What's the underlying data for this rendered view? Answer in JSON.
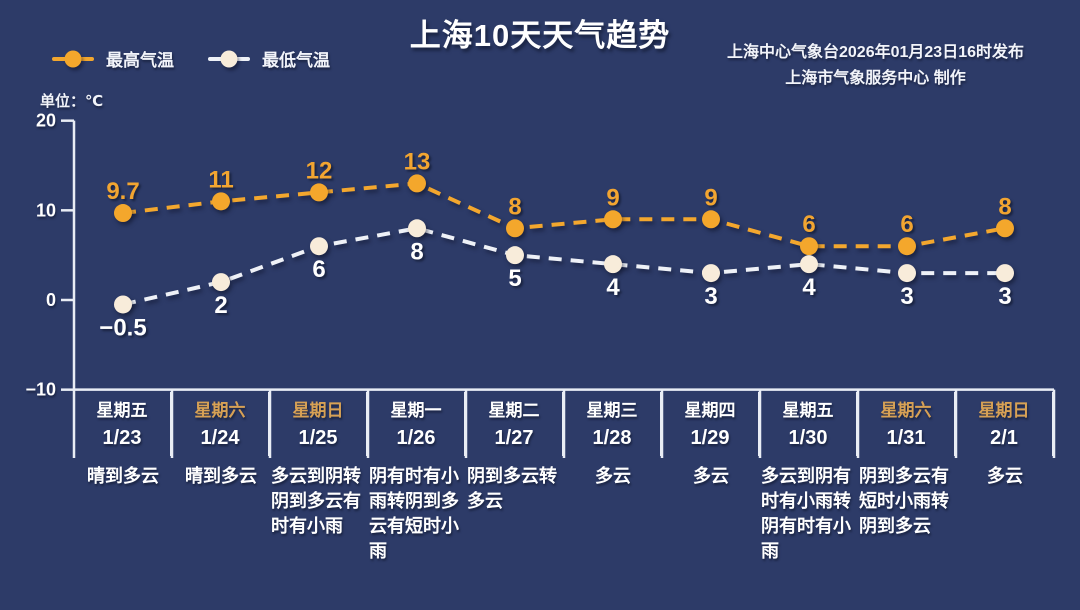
{
  "meta": {
    "title": "上海10天天气趋势",
    "source_line1": "上海中心气象台2026年01月23日16时发布",
    "source_line2": "上海市气象服务中心  制作",
    "unit_label": "单位：℃"
  },
  "colors": {
    "background": "#2d3b68",
    "max_line": "#f3a72e",
    "max_label": "#f2a531",
    "min_line": "#eef1f7",
    "min_marker": "#f8ecda",
    "min_label": "#ffffff",
    "axis": "#e9edf5",
    "weekday_weekend": "#d7a155",
    "weekday_normal": "#ffffff"
  },
  "legend": [
    {
      "name": "legend-item-max",
      "label": "最高气温",
      "line_color": "#f3a72e",
      "marker_color": "#f4a72c"
    },
    {
      "name": "legend-item-min",
      "label": "最低气温",
      "line_color": "#eef1f7",
      "marker_color": "#f8ecda"
    }
  ],
  "chart_data": {
    "type": "line",
    "title": "上海10天天气趋势",
    "x_categories": [
      "1/23",
      "1/24",
      "1/25",
      "1/26",
      "1/27",
      "1/28",
      "1/29",
      "1/30",
      "1/31",
      "2/1"
    ],
    "series": [
      {
        "name": "最高气温",
        "values": [
          9.7,
          11,
          12,
          13,
          8,
          9,
          9,
          6,
          6,
          8
        ],
        "labels": [
          "9.7",
          "11",
          "12",
          "13",
          "8",
          "9",
          "9",
          "6",
          "6",
          "8"
        ],
        "line_color": "#f3a72e",
        "marker_color": "#f4a72c",
        "label_color": "#f2a531",
        "label_side": "above"
      },
      {
        "name": "最低气温",
        "values": [
          -0.5,
          2,
          6,
          8,
          5,
          4,
          3,
          4,
          3,
          3
        ],
        "labels": [
          "−0.5",
          "2",
          "6",
          "8",
          "5",
          "4",
          "3",
          "4",
          "3",
          "3"
        ],
        "line_color": "#eef1f7",
        "marker_color": "#f8ecda",
        "label_color": "#ffffff",
        "label_side": "below"
      }
    ],
    "ylim": [
      -10,
      20
    ],
    "yticks": [
      {
        "value": 20,
        "label": "20"
      },
      {
        "value": 10,
        "label": "10"
      },
      {
        "value": 0,
        "label": "0"
      },
      {
        "value": -10,
        "label": "−10"
      }
    ],
    "grid": false,
    "line_style": "dashed",
    "legend_position": "top-left",
    "ylabel": "单位：℃"
  },
  "days": [
    {
      "weekday": "星期五",
      "date": "1/23",
      "is_weekend": false,
      "weather": "晴到多云"
    },
    {
      "weekday": "星期六",
      "date": "1/24",
      "is_weekend": true,
      "weather": "晴到多云"
    },
    {
      "weekday": "星期日",
      "date": "1/25",
      "is_weekend": true,
      "weather": "多云到阴转阴到多云有时有小雨"
    },
    {
      "weekday": "星期一",
      "date": "1/26",
      "is_weekend": false,
      "weather": "阴有时有小雨转阴到多云有短时小雨"
    },
    {
      "weekday": "星期二",
      "date": "1/27",
      "is_weekend": false,
      "weather": "阴到多云转多云"
    },
    {
      "weekday": "星期三",
      "date": "1/28",
      "is_weekend": false,
      "weather": "多云"
    },
    {
      "weekday": "星期四",
      "date": "1/29",
      "is_weekend": false,
      "weather": "多云"
    },
    {
      "weekday": "星期五",
      "date": "1/30",
      "is_weekend": false,
      "weather": "多云到阴有时有小雨转阴有时有小雨"
    },
    {
      "weekday": "星期六",
      "date": "1/31",
      "is_weekend": true,
      "weather": "阴到多云有短时小雨转阴到多云"
    },
    {
      "weekday": "星期日",
      "date": "2/1",
      "is_weekend": true,
      "weather": "多云"
    }
  ]
}
